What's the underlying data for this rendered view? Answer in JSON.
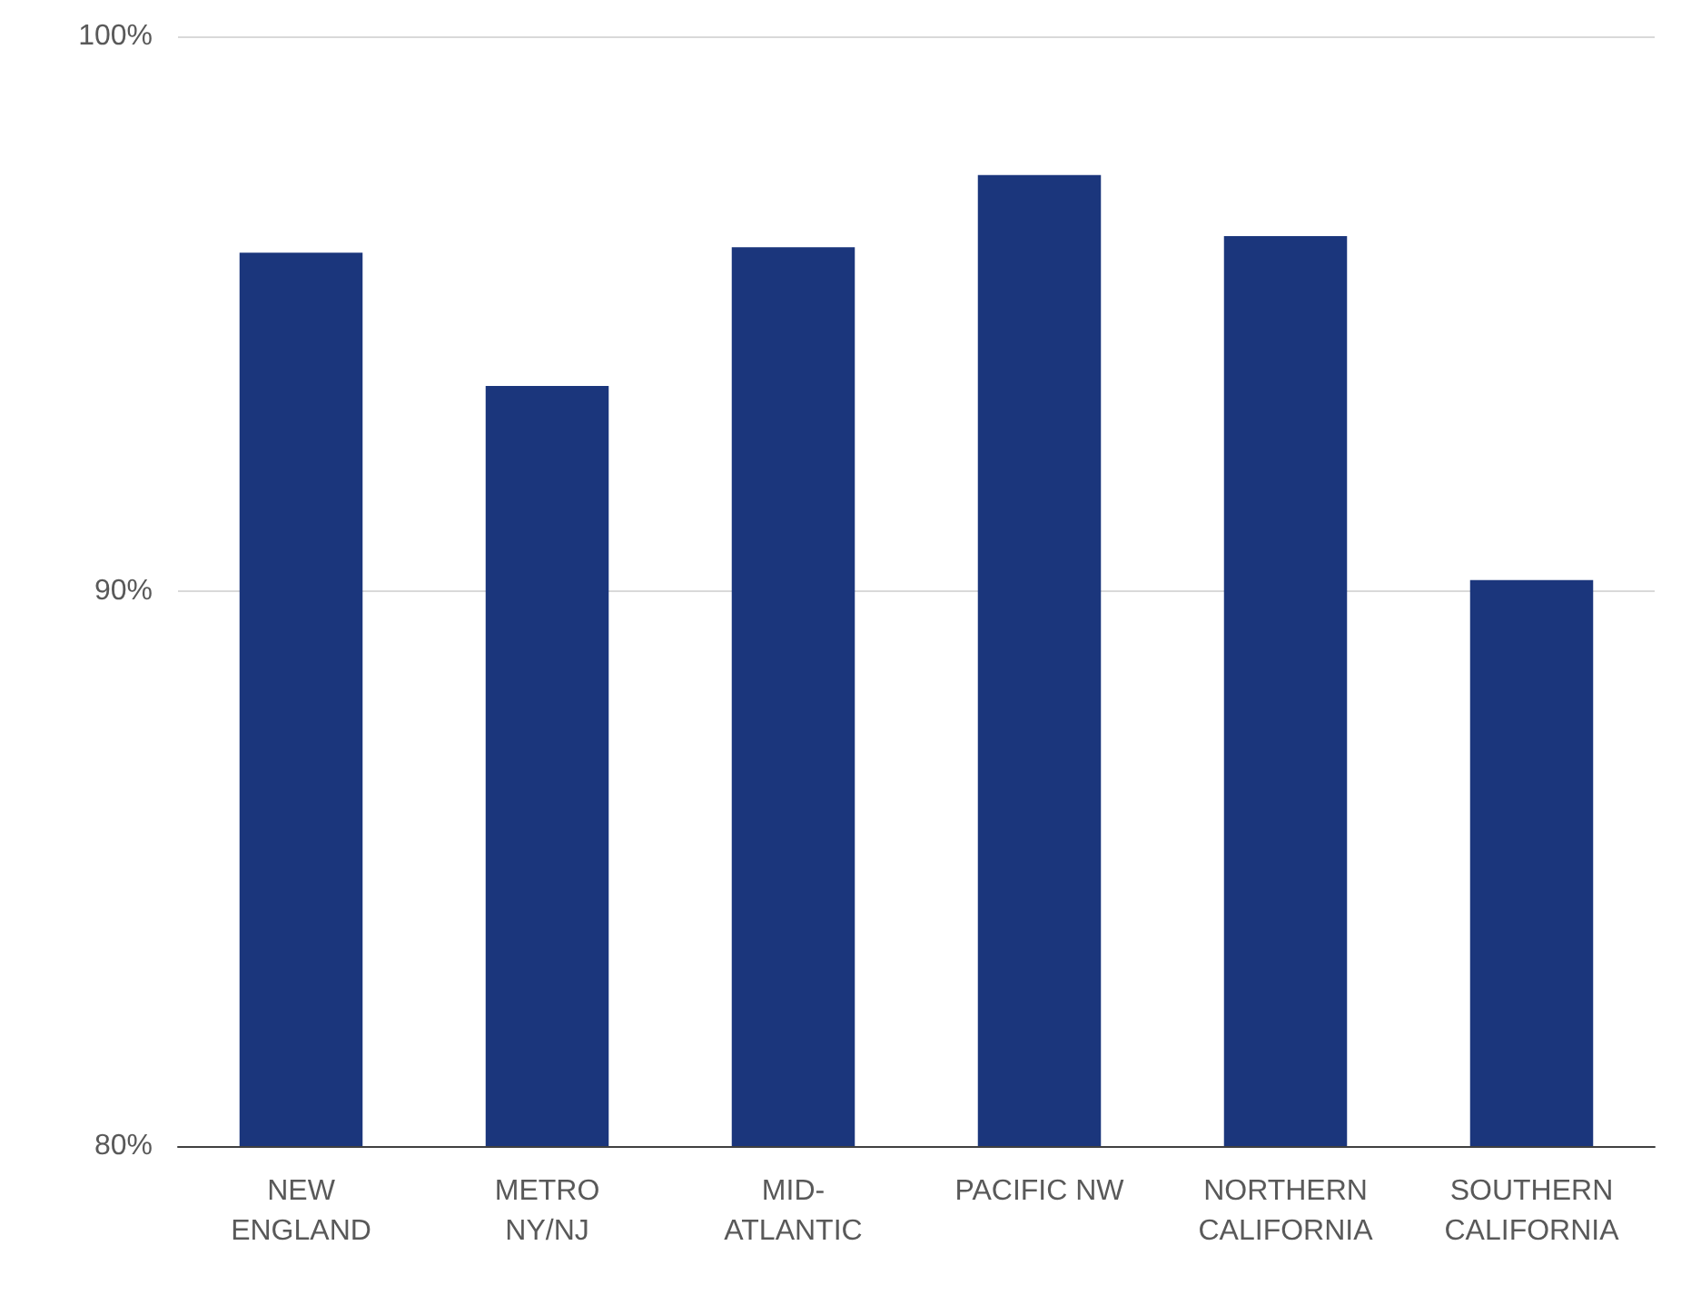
{
  "chart_data": {
    "type": "bar",
    "categories": [
      "NEW\nENGLAND",
      "METRO\nNY/NJ",
      "MID-\nATLANTIC",
      "PACIFIC NW",
      "NORTHERN\nCALIFORNIA",
      "SOUTHERN\nCALIFORNIA"
    ],
    "values": [
      96.1,
      93.7,
      96.2,
      97.5,
      96.4,
      90.2
    ],
    "color": "#1b367c",
    "ylim": [
      80,
      100
    ],
    "yticks": [
      {
        "value": 80,
        "label": "80%"
      },
      {
        "value": 90,
        "label": "90%"
      },
      {
        "value": 100,
        "label": "100%"
      }
    ],
    "grid": "y"
  }
}
